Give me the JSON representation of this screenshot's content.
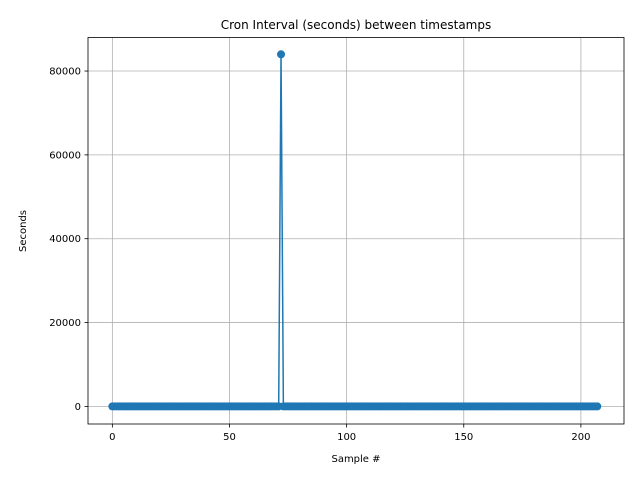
{
  "chart_data": {
    "type": "line",
    "title": "Cron Interval (seconds) between timestamps",
    "xlabel": "Sample #",
    "ylabel": "Seconds",
    "xlim": [
      -10.4,
      218.4
    ],
    "ylim": [
      -4200,
      88000
    ],
    "x_ticks": [
      0,
      50,
      100,
      150,
      200
    ],
    "y_ticks": [
      0,
      20000,
      40000,
      60000,
      80000
    ],
    "x_tick_labels": [
      "0",
      "50",
      "100",
      "150",
      "200"
    ],
    "y_tick_labels": [
      "0",
      "20000",
      "40000",
      "60000",
      "80000"
    ],
    "grid": true,
    "markers": true,
    "series": [
      {
        "color": "#1f77b4",
        "point_count": 208,
        "baseline_value": 0,
        "spikes": [
          {
            "x": 72,
            "y": 84000
          }
        ]
      }
    ]
  }
}
